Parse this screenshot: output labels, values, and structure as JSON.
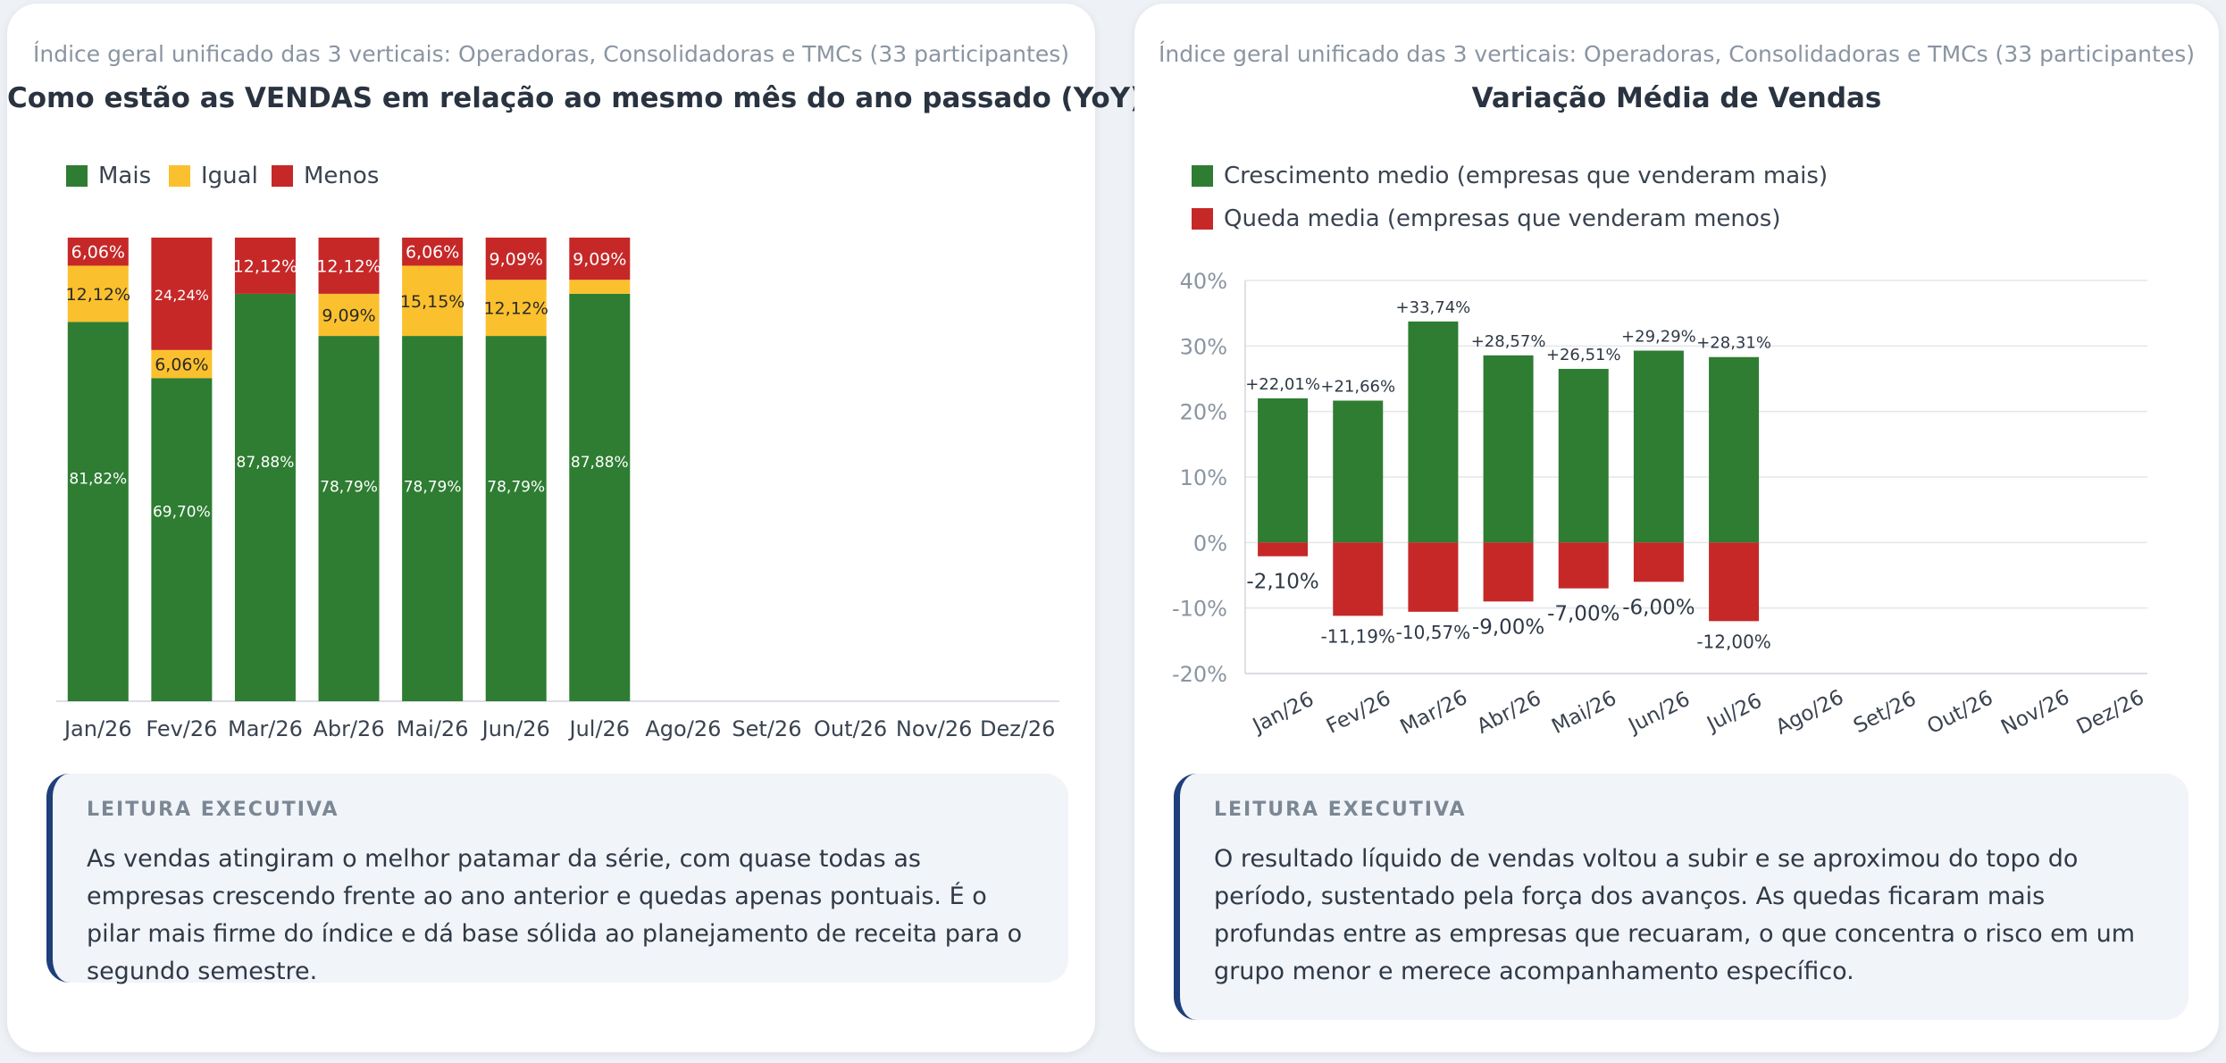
{
  "charts": [
    {
      "subtitle": "Índice geral unificado das 3 verticais: Operadoras, Consolidadoras e TMCs (33 participantes)",
      "title": "Como estão as VENDAS em relação ao mesmo mês do ano passado (YoY)",
      "legend": [
        {
          "label": "Mais",
          "color": "#2e7d32"
        },
        {
          "label": "Igual",
          "color": "#fbc02d"
        },
        {
          "label": "Menos",
          "color": "#c62828"
        }
      ],
      "executive_summary": {
        "heading": "LEITURA EXECUTIVA",
        "text": "As vendas atingiram o melhor patamar da série, com quase todas as empresas crescendo frente ao ano anterior e quedas apenas pontuais. É o pilar mais firme do índice e dá base sólida ao planejamento de receita para o segundo semestre."
      }
    },
    {
      "subtitle": "Índice geral unificado das 3 verticais: Operadoras, Consolidadoras e TMCs (33 participantes)",
      "title": "Variação Média de Vendas",
      "legend": [
        {
          "label": "Crescimento medio (empresas que venderam mais)",
          "color": "#2e7d32"
        },
        {
          "label": "Queda media (empresas que venderam menos)",
          "color": "#c62828"
        }
      ],
      "executive_summary": {
        "heading": "LEITURA EXECUTIVA",
        "text": "O resultado líquido de vendas voltou a subir e se aproximou do topo do período, sustentado pela força dos avanços. As quedas ficaram mais profundas entre as empresas que recuaram, o que concentra o risco em um grupo menor e merece acompanhamento específico."
      }
    }
  ],
  "chart_data": [
    {
      "type": "bar",
      "stacked": true,
      "percent_stacked": true,
      "categories": [
        "Jan/26",
        "Fev/26",
        "Mar/26",
        "Abr/26",
        "Mai/26",
        "Jun/26",
        "Jul/26",
        "Ago/26",
        "Set/26",
        "Out/26",
        "Nov/26",
        "Dez/26"
      ],
      "series": [
        {
          "name": "Mais",
          "color": "#2e7d32",
          "values": [
            81.82,
            69.7,
            87.88,
            78.79,
            78.79,
            78.79,
            87.88,
            null,
            null,
            null,
            null,
            null
          ]
        },
        {
          "name": "Igual",
          "color": "#fbc02d",
          "values": [
            12.12,
            6.06,
            0,
            9.09,
            15.15,
            12.12,
            3.03,
            null,
            null,
            null,
            null,
            null
          ]
        },
        {
          "name": "Menos",
          "color": "#c62828",
          "values": [
            6.06,
            24.24,
            12.12,
            12.12,
            6.06,
            9.09,
            9.09,
            null,
            null,
            null,
            null,
            null
          ]
        }
      ],
      "value_labels": [
        [
          "81,82%",
          "69,70%",
          "87,88%",
          "78,79%",
          "78,79%",
          "78,79%",
          "87,88%"
        ],
        [
          "12,12%",
          "6,06%",
          "",
          "9,09%",
          "15,15%",
          "12,12%",
          ""
        ],
        [
          "6,06%",
          "24,24%",
          "12,12%",
          "12,12%",
          "6,06%",
          "9,09%",
          "9,09%"
        ]
      ],
      "ylim": [
        0,
        100
      ],
      "grid": false,
      "legend_position": "top-left"
    },
    {
      "type": "bar",
      "stacked": false,
      "categories": [
        "Jan/26",
        "Fev/26",
        "Mar/26",
        "Abr/26",
        "Mai/26",
        "Jun/26",
        "Jul/26",
        "Ago/26",
        "Set/26",
        "Out/26",
        "Nov/26",
        "Dez/26"
      ],
      "series": [
        {
          "name": "Crescimento medio (empresas que venderam mais)",
          "color": "#2e7d32",
          "values": [
            22.01,
            21.66,
            33.74,
            28.57,
            26.51,
            29.29,
            28.31,
            null,
            null,
            null,
            null,
            null
          ]
        },
        {
          "name": "Queda media (empresas que venderam menos)",
          "color": "#c62828",
          "values": [
            -2.1,
            -11.19,
            -10.57,
            -9.0,
            -7.0,
            -6.0,
            -12.0,
            null,
            null,
            null,
            null,
            null
          ]
        }
      ],
      "value_labels": [
        [
          "+22,01%",
          "+21,66%",
          "+33,74%",
          "+28,57%",
          "+26,51%",
          "+29,29%",
          "+28,31%"
        ],
        [
          "-2,10%",
          "-11,19%",
          "-10,57%",
          "-9,00%",
          "-7,00%",
          "-6,00%",
          "-12,00%"
        ]
      ],
      "y_ticks": [
        "40%",
        "30%",
        "20%",
        "10%",
        "0%",
        "-10%",
        "-20%"
      ],
      "ylim": [
        -20,
        40
      ],
      "grid": true,
      "legend_position": "top-left"
    }
  ]
}
